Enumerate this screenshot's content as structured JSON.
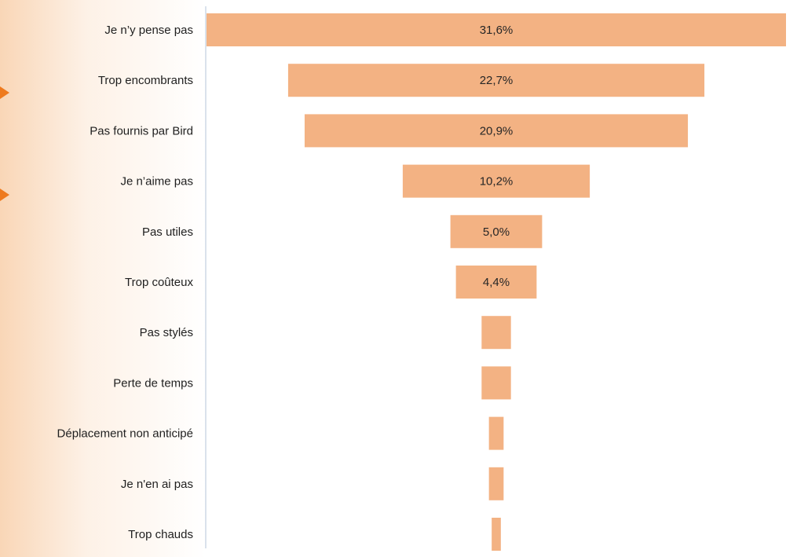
{
  "chart_data": {
    "type": "bar",
    "orientation": "horizontal",
    "style": "funnel-centered",
    "categories": [
      "Je n’y pense pas",
      "Trop encombrants",
      "Pas fournis par Bird",
      "Je n’aime pas",
      "Pas utiles",
      "Trop coûteux",
      "Pas stylés",
      "Perte de temps",
      "Déplacement non anticipé",
      "Je n'en ai pas",
      "Trop chauds"
    ],
    "values": [
      31.6,
      22.7,
      20.9,
      10.2,
      5.0,
      4.4,
      1.6,
      1.6,
      0.8,
      0.8,
      0.5
    ],
    "value_labels": [
      "31,6%",
      "22,7%",
      "20,9%",
      "10,2%",
      "5,0%",
      "4,4%",
      "",
      "",
      "",
      "",
      ""
    ],
    "unit": "%",
    "title": "",
    "xlabel": "",
    "ylabel": "",
    "bar_color": "#f3b283",
    "axis_line_color": "#b4c4d8",
    "label_color": "#1f1f1f",
    "accent_arrow_color": "#ee7a1e",
    "grid": false,
    "legend": "none"
  }
}
